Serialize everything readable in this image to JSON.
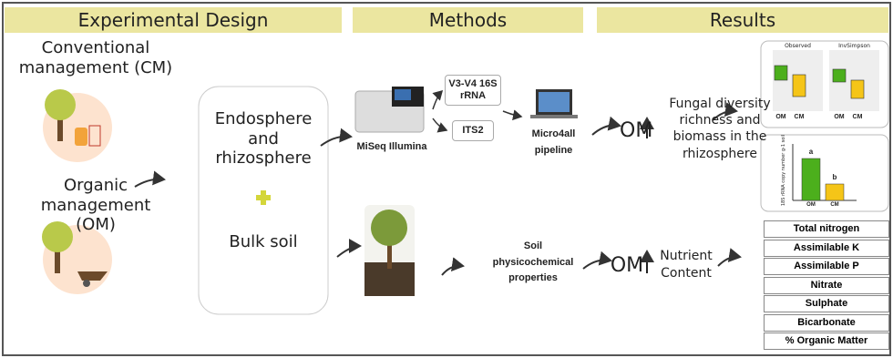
{
  "headers": [
    "Experimental Design",
    "Methods",
    "Results"
  ],
  "design": {
    "conventional": "Conventional management (CM)",
    "organic": "Organic management (OM)",
    "compartments": "Endosphere and rhizosphere",
    "bulk": "Bulk soil"
  },
  "methods": {
    "sequencer": "MiSeq Illumina",
    "region_16s": "V3-V4 16S rRNA",
    "region_its": "ITS2",
    "pipeline": "Micro4all pipeline",
    "soil": "Soil physicochemical properties"
  },
  "results": {
    "om_fungal": "OM",
    "fungal": "Fungal diversity richness and biomass in the rhizosphere",
    "om_nutrient": "OM",
    "nutrient": "Nutrient Content",
    "boxplot": {
      "panels": [
        "Observed",
        "InvSimpson"
      ],
      "categories": [
        "OM",
        "CM"
      ]
    },
    "barplot": {
      "ylabel": "18S rRNA copy number g-1 soil",
      "categories": [
        "OM",
        "CM"
      ],
      "values": [
        4.6,
        1.8
      ],
      "ylim": [
        0,
        6
      ],
      "significance": [
        "a",
        "b"
      ],
      "colors": [
        "#4caf1c",
        "#f5c518"
      ]
    },
    "nutrients": [
      "Total nitrogen",
      "Assimilable K",
      "Assimilable P",
      "Nitrate",
      "Sulphate",
      "Bicarbonate",
      "% Organic Matter"
    ]
  }
}
